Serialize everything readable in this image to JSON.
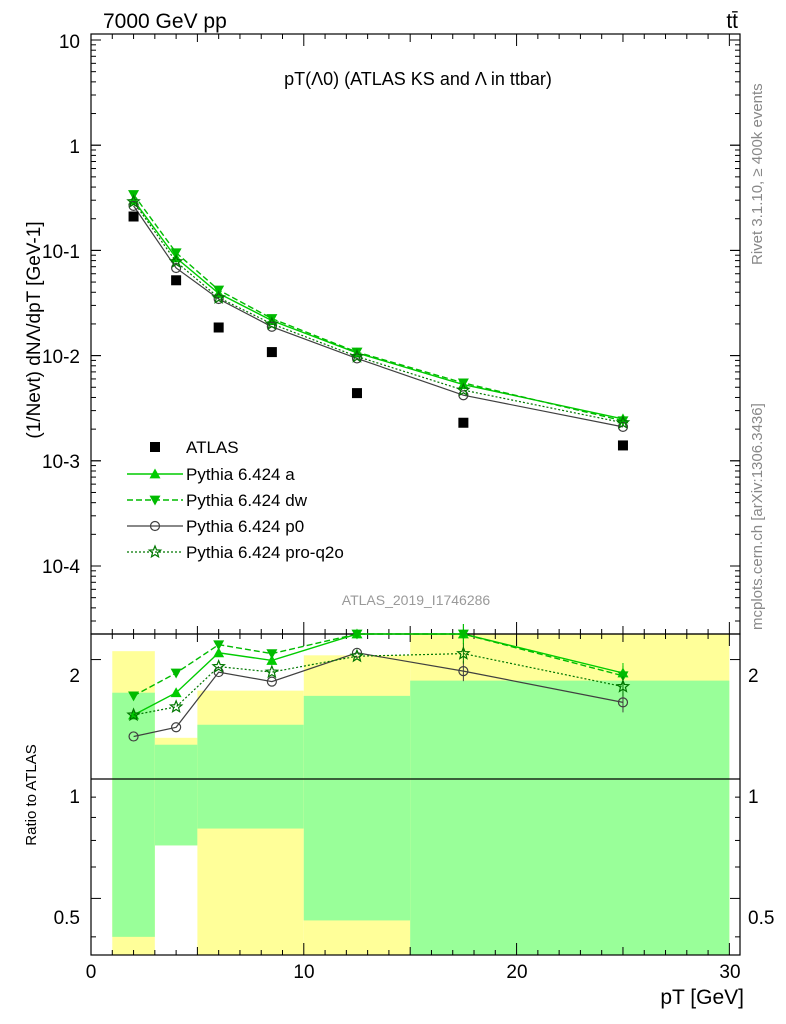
{
  "header": {
    "energy": "7000 GeV pp",
    "process": "tt̄",
    "rivet": "Rivet 3.1.10, ≥ 400k events",
    "mcplots": "mcplots.cern.ch [arXiv:1306.3436]",
    "analysis": "ATLAS_2019_I1746286"
  },
  "chart_data": [
    {
      "type": "scatter",
      "title": "pT(Λ0) (ATLAS KS and Λ in ttbar)",
      "yscale": "log",
      "ylim": [
        2.5e-05,
        12
      ],
      "xlim": [
        0,
        30.5
      ],
      "ylabel": "(1/Nevt) dNΛ/dpT [GeV-1]",
      "yticklabels": [
        "10",
        "1",
        "10-1",
        "10-2",
        "10-3",
        "10-4"
      ],
      "x": [
        2,
        4,
        6,
        8.5,
        12.5,
        17.5,
        25
      ],
      "data": {
        "name": "ATLAS",
        "values": [
          0.21,
          0.052,
          0.0185,
          0.0108,
          0.0044,
          0.0023,
          0.0014
        ]
      },
      "series": [
        {
          "name": "Pythia 6.424 a",
          "style": "solid-triangle-up",
          "color": "#00cc00",
          "values": [
            0.3,
            0.085,
            0.039,
            0.0215,
            0.0106,
            0.0053,
            0.0025
          ]
        },
        {
          "name": "Pythia 6.424 dw",
          "style": "dashed-triangle-down",
          "color": "#00bb00",
          "values": [
            0.34,
            0.095,
            0.042,
            0.0225,
            0.0108,
            0.0055,
            0.0024
          ]
        },
        {
          "name": "Pythia 6.424 p0",
          "style": "solid-open-circle",
          "color": "#404040",
          "values": [
            0.265,
            0.068,
            0.0345,
            0.0188,
            0.0094,
            0.0042,
            0.0021
          ]
        },
        {
          "name": "Pythia 6.424 pro-q2o",
          "style": "dotted-open-star",
          "color": "#007700",
          "values": [
            0.29,
            0.078,
            0.0355,
            0.02,
            0.0098,
            0.0047,
            0.0023
          ]
        }
      ]
    },
    {
      "type": "scatter",
      "title": "Ratio to ATLAS",
      "ylabel": "Ratio to ATLAS",
      "yscale": "log",
      "ylim": [
        0.36,
        2.32
      ],
      "yticks": [
        0.5,
        1,
        2
      ],
      "yticklabels": [
        "0.5",
        "1",
        "2"
      ],
      "xlim": [
        0,
        30.5
      ],
      "xticks": [
        0,
        10,
        20,
        30
      ],
      "xticklabels": [
        "0",
        "10",
        "20",
        "30"
      ],
      "xlabel": "pT [GeV]",
      "bins": [
        {
          "lo": 1,
          "hi": 3,
          "green": [
            0.4,
            1.65
          ],
          "yellow": [
            0.36,
            2.1
          ]
        },
        {
          "lo": 3,
          "hi": 5,
          "green": [
            0.68,
            1.22
          ],
          "yellow": [
            0.68,
            1.27
          ]
        },
        {
          "lo": 5,
          "hi": 10,
          "green": [
            0.75,
            1.37
          ],
          "yellow": [
            0.36,
            1.67
          ]
        },
        {
          "lo": 10,
          "hi": 15,
          "green": [
            0.44,
            1.62
          ],
          "yellow": [
            0.36,
            2.05
          ]
        },
        {
          "lo": 15,
          "hi": 30,
          "green": [
            0.36,
            1.77
          ],
          "yellow": [
            0.36,
            2.32
          ]
        }
      ],
      "x": [
        2,
        4,
        6,
        8.5,
        12.5,
        17.5,
        25
      ],
      "series": [
        {
          "name": "Pythia 6.424 a",
          "values": [
            1.45,
            1.65,
            2.08,
            1.99,
            2.36,
            2.32,
            1.85
          ]
        },
        {
          "name": "Pythia 6.424 dw",
          "values": [
            1.62,
            1.85,
            2.18,
            2.07,
            2.4,
            2.38,
            1.82
          ]
        },
        {
          "name": "Pythia 6.424 p0",
          "values": [
            1.28,
            1.35,
            1.86,
            1.76,
            2.08,
            1.87,
            1.56
          ]
        },
        {
          "name": "Pythia 6.424 pro-q2o",
          "values": [
            1.45,
            1.52,
            1.92,
            1.86,
            2.04,
            2.07,
            1.71
          ]
        }
      ]
    }
  ]
}
